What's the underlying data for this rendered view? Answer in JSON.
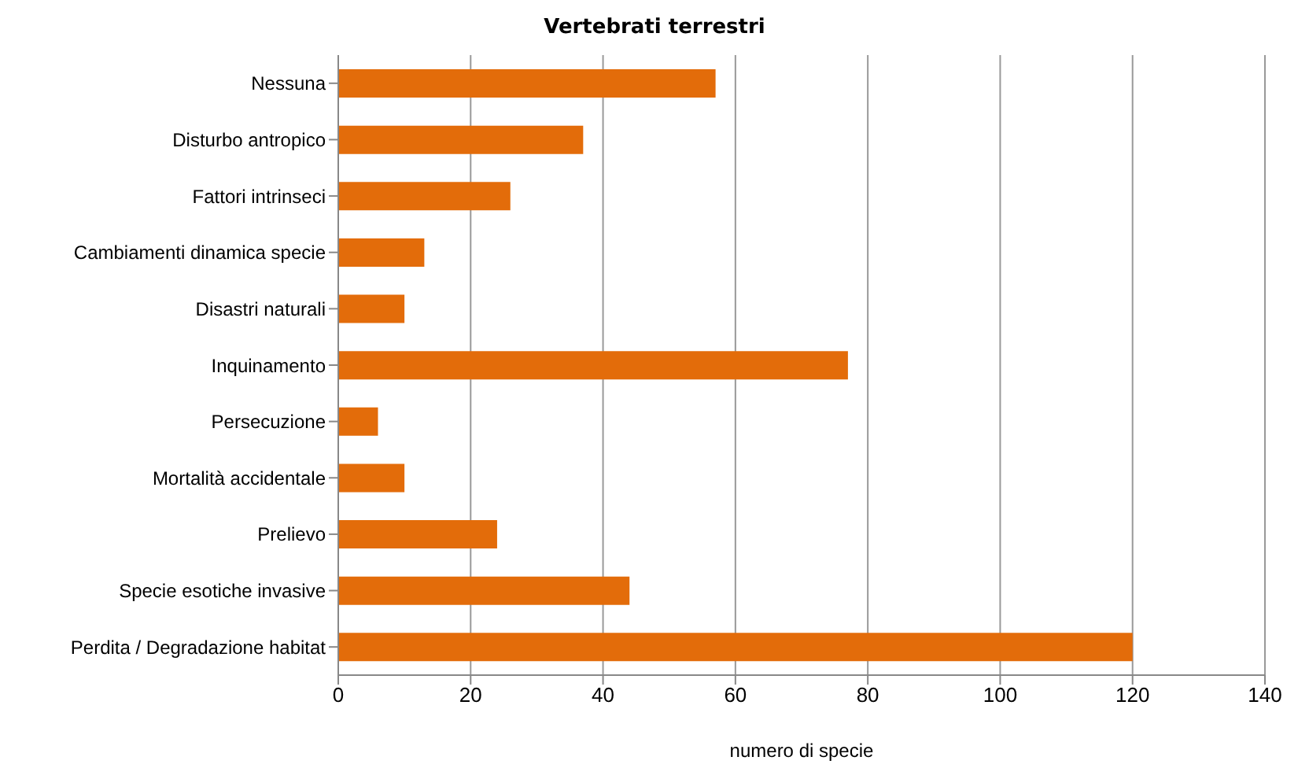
{
  "chart_data": {
    "type": "bar",
    "orientation": "horizontal",
    "title": "Vertebrati terrestri",
    "xlabel": "numero di specie",
    "categories": [
      "Nessuna",
      "Disturbo antropico",
      "Fattori intrinseci",
      "Cambiamenti dinamica specie",
      "Disastri naturali",
      "Inquinamento",
      "Persecuzione",
      "Mortalità accidentale",
      "Prelievo",
      "Specie esotiche invasive",
      "Perdita / Degradazione habitat"
    ],
    "values": [
      57,
      37,
      26,
      13,
      10,
      77,
      6,
      10,
      24,
      44,
      120
    ],
    "color": "#e36c0a",
    "xlim": [
      0,
      140
    ],
    "xticks": [
      0,
      20,
      40,
      60,
      80,
      100,
      120,
      140
    ],
    "grid": "x"
  }
}
